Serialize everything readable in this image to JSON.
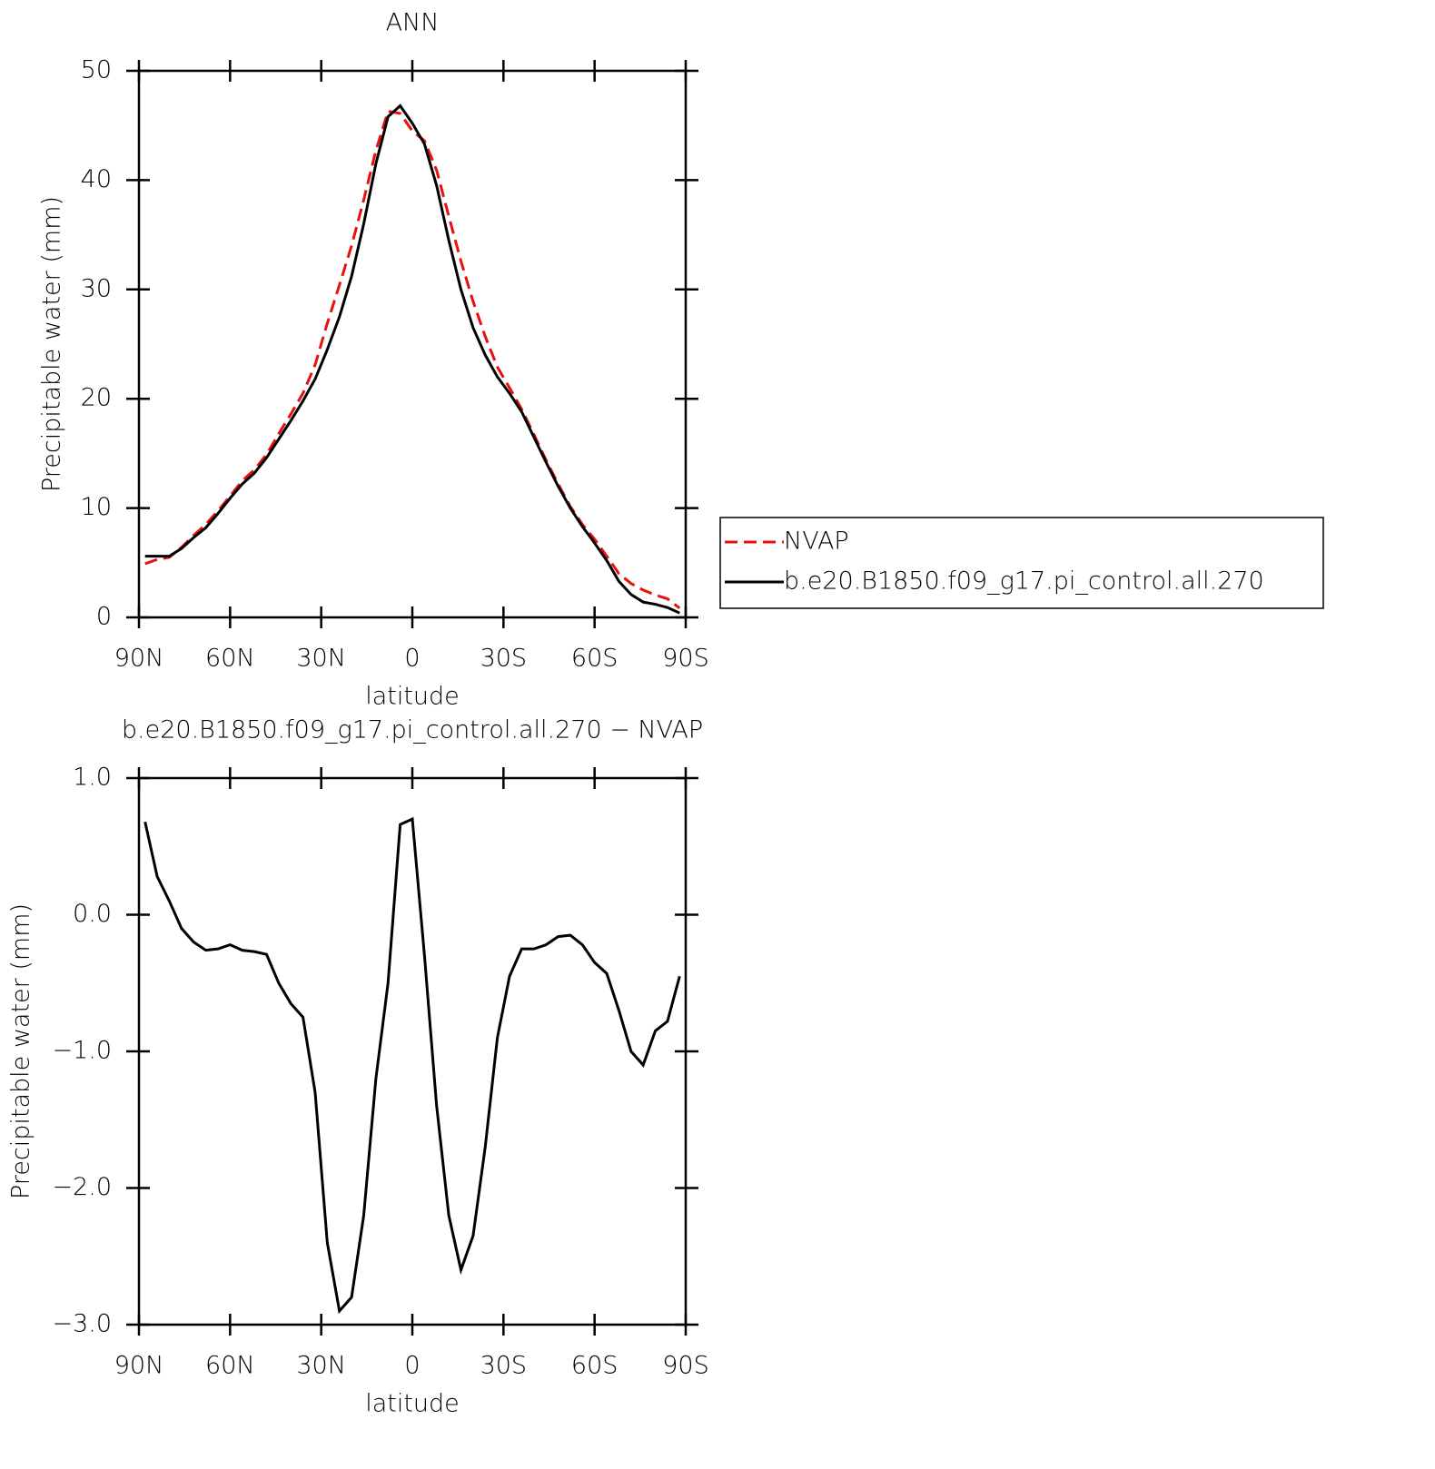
{
  "chart_data": [
    {
      "type": "line",
      "title": "ANN",
      "x_label": "latitude",
      "y_label": "Precipitable water (mm)",
      "x": [
        88,
        84,
        80,
        76,
        72,
        68,
        64,
        60,
        56,
        52,
        48,
        44,
        40,
        36,
        32,
        28,
        24,
        20,
        16,
        12,
        8,
        4,
        0,
        -4,
        -8,
        -12,
        -16,
        -20,
        -24,
        -28,
        -32,
        -36,
        -40,
        -44,
        -48,
        -52,
        -56,
        -60,
        -64,
        -68,
        -72,
        -76,
        -80,
        -84,
        -88
      ],
      "xlim": [
        90,
        -90
      ],
      "xticks": [
        {
          "value": 90,
          "label": "90N"
        },
        {
          "value": 60,
          "label": "60N"
        },
        {
          "value": 30,
          "label": "30N"
        },
        0,
        {
          "value": -30,
          "label": "30S"
        },
        {
          "value": -60,
          "label": "60S"
        },
        {
          "value": -90,
          "label": "90S"
        }
      ],
      "ylim": [
        0,
        50
      ],
      "yticks": [
        0,
        10,
        20,
        30,
        40,
        50
      ],
      "legend": "right",
      "series": [
        {
          "name": "NVAP",
          "color": "#e8110e",
          "style": "dashed",
          "values": [
            4.9,
            5.3,
            5.5,
            6.4,
            7.5,
            8.5,
            9.75,
            11.1,
            12.5,
            13.5,
            14.9,
            16.8,
            18.6,
            20.5,
            23.1,
            26.9,
            30.4,
            34.0,
            38.2,
            42.7,
            46.3,
            46.1,
            44.5,
            43.6,
            40.9,
            36.7,
            32.6,
            28.9,
            25.7,
            22.9,
            21.0,
            19.05,
            16.75,
            14.4,
            12.2,
            10.15,
            8.5,
            7.15,
            5.6,
            4.0,
            3.1,
            2.5,
            2.05,
            1.7,
            0.85
          ]
        },
        {
          "name": "b.e20.B1850.f09_g17.pi_control.all.270",
          "color": "#000000",
          "style": "solid",
          "values": [
            5.6,
            5.6,
            5.6,
            6.3,
            7.3,
            8.2,
            9.5,
            10.9,
            12.2,
            13.2,
            14.6,
            16.3,
            18.0,
            19.8,
            21.8,
            24.5,
            27.5,
            31.2,
            36.0,
            41.5,
            45.8,
            46.8,
            45.2,
            43.3,
            39.5,
            34.5,
            30.0,
            26.5,
            24.0,
            22.0,
            20.5,
            18.8,
            16.5,
            14.2,
            12.0,
            10.0,
            8.3,
            6.8,
            5.2,
            3.3,
            2.1,
            1.4,
            1.2,
            0.9,
            0.4
          ]
        }
      ]
    },
    {
      "type": "line",
      "title": "b.e20.B1850.f09_g17.pi_control.all.270  −  NVAP",
      "x_label": "latitude",
      "y_label": "Precipitable water (mm)",
      "x": [
        88,
        84,
        80,
        76,
        72,
        68,
        64,
        60,
        56,
        52,
        48,
        44,
        40,
        36,
        32,
        28,
        24,
        20,
        16,
        12,
        8,
        4,
        0,
        -4,
        -8,
        -12,
        -16,
        -20,
        -24,
        -28,
        -32,
        -36,
        -40,
        -44,
        -48,
        -52,
        -56,
        -60,
        -64,
        -68,
        -72,
        -76,
        -80,
        -84,
        -88
      ],
      "xlim": [
        90,
        -90
      ],
      "xticks": [
        {
          "value": 90,
          "label": "90N"
        },
        {
          "value": 60,
          "label": "60N"
        },
        {
          "value": 30,
          "label": "30N"
        },
        0,
        {
          "value": -30,
          "label": "30S"
        },
        {
          "value": -60,
          "label": "60S"
        },
        {
          "value": -90,
          "label": "90S"
        }
      ],
      "ylim": [
        -3,
        1
      ],
      "yticks": [
        {
          "value": -3,
          "label": "−3.0"
        },
        {
          "value": -2,
          "label": "−2.0"
        },
        {
          "value": -1,
          "label": "−1.0"
        },
        {
          "value": 0,
          "label": "0.0"
        },
        {
          "value": 1,
          "label": "1.0"
        }
      ],
      "color": "#000000",
      "style": "solid",
      "values": [
        0.68,
        0.28,
        0.1,
        -0.1,
        -0.2,
        -0.26,
        -0.25,
        -0.22,
        -0.26,
        -0.27,
        -0.29,
        -0.5,
        -0.65,
        -0.75,
        -1.3,
        -2.4,
        -2.9,
        -2.8,
        -2.2,
        -1.2,
        -0.5,
        0.66,
        0.7,
        -0.3,
        -1.4,
        -2.2,
        -2.6,
        -2.35,
        -1.7,
        -0.9,
        -0.45,
        -0.25,
        -0.25,
        -0.22,
        -0.16,
        -0.15,
        -0.22,
        -0.35,
        -0.43,
        -0.7,
        -1.0,
        -1.1,
        -0.85,
        -0.78,
        -0.45
      ]
    }
  ]
}
